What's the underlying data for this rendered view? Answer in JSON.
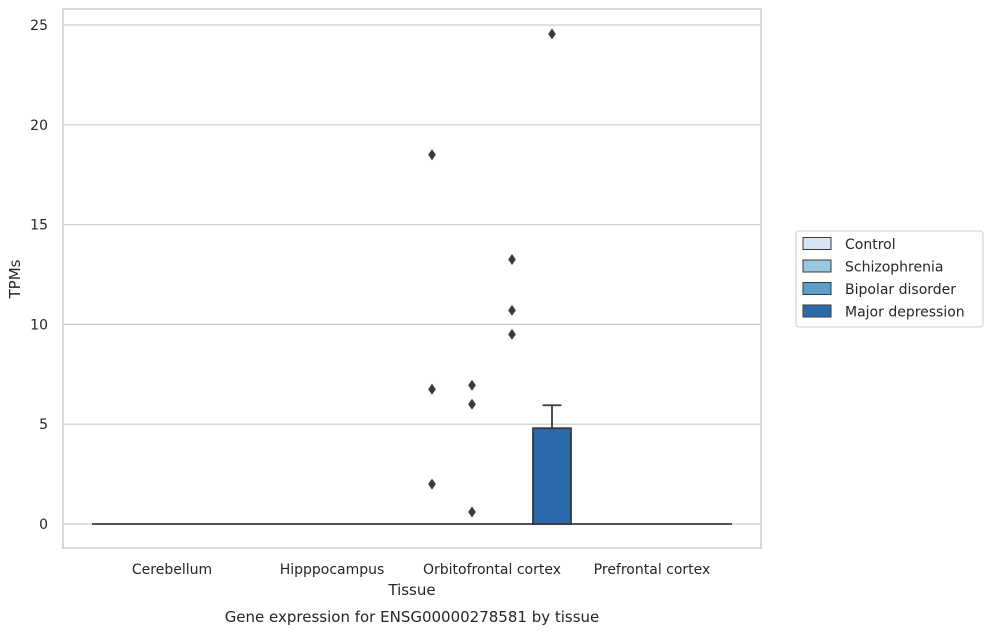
{
  "chart_data": {
    "type": "box",
    "title": "",
    "caption": "Gene expression for ENSG00000278581 by tissue",
    "xlabel": "Tissue",
    "ylabel": "TPMs",
    "ylim": [
      -1.2,
      25.8
    ],
    "yticks": [
      0,
      5,
      10,
      15,
      20,
      25
    ],
    "grid": "horizontal",
    "legend_position": "right",
    "categories": [
      "Cerebellum",
      "Hipppocampus",
      "Orbitofrontal cortex",
      "Prefrontal cortex"
    ],
    "series": [
      {
        "name": "Control",
        "color": "#d6e5f4",
        "boxes": [
          {
            "category": "Cerebellum",
            "min": 0,
            "q1": 0,
            "median": 0,
            "q3": 0,
            "max": 0,
            "outliers": []
          },
          {
            "category": "Hipppocampus",
            "min": 0,
            "q1": 0,
            "median": 0,
            "q3": 0,
            "max": 0,
            "outliers": []
          },
          {
            "category": "Orbitofrontal cortex",
            "min": 0,
            "q1": 0,
            "median": 0,
            "q3": 0,
            "max": 0,
            "outliers": [
              18.5,
              6.75,
              2.0
            ]
          },
          {
            "category": "Prefrontal cortex",
            "min": 0,
            "q1": 0,
            "median": 0,
            "q3": 0,
            "max": 0,
            "outliers": []
          }
        ]
      },
      {
        "name": "Schizophrenia",
        "color": "#9ac8e0",
        "boxes": [
          {
            "category": "Cerebellum",
            "min": 0,
            "q1": 0,
            "median": 0,
            "q3": 0,
            "max": 0,
            "outliers": []
          },
          {
            "category": "Hipppocampus",
            "min": 0,
            "q1": 0,
            "median": 0,
            "q3": 0,
            "max": 0,
            "outliers": []
          },
          {
            "category": "Orbitofrontal cortex",
            "min": 0,
            "q1": 0,
            "median": 0,
            "q3": 0,
            "max": 0,
            "outliers": [
              6.95,
              6.0,
              0.6
            ]
          },
          {
            "category": "Prefrontal cortex",
            "min": 0,
            "q1": 0,
            "median": 0,
            "q3": 0,
            "max": 0,
            "outliers": []
          }
        ]
      },
      {
        "name": "Bipolar disorder",
        "color": "#5b9ec9",
        "boxes": [
          {
            "category": "Cerebellum",
            "min": 0,
            "q1": 0,
            "median": 0,
            "q3": 0,
            "max": 0,
            "outliers": []
          },
          {
            "category": "Hipppocampus",
            "min": 0,
            "q1": 0,
            "median": 0,
            "q3": 0,
            "max": 0,
            "outliers": []
          },
          {
            "category": "Orbitofrontal cortex",
            "min": 0,
            "q1": 0,
            "median": 0,
            "q3": 0,
            "max": 0,
            "outliers": [
              13.25,
              10.7,
              9.5
            ]
          },
          {
            "category": "Prefrontal cortex",
            "min": 0,
            "q1": 0,
            "median": 0,
            "q3": 0,
            "max": 0,
            "outliers": []
          }
        ]
      },
      {
        "name": "Major depression",
        "color": "#2d6aab",
        "boxes": [
          {
            "category": "Cerebellum",
            "min": 0,
            "q1": 0,
            "median": 0,
            "q3": 0,
            "max": 0,
            "outliers": []
          },
          {
            "category": "Hipppocampus",
            "min": 0,
            "q1": 0,
            "median": 0,
            "q3": 0,
            "max": 0,
            "outliers": []
          },
          {
            "category": "Orbitofrontal cortex",
            "min": 0,
            "q1": 0,
            "median": 0,
            "q3": 4.8,
            "max": 5.95,
            "outliers": [
              24.55
            ]
          },
          {
            "category": "Prefrontal cortex",
            "min": 0,
            "q1": 0,
            "median": 0,
            "q3": 0,
            "max": 0,
            "outliers": []
          }
        ]
      }
    ]
  }
}
